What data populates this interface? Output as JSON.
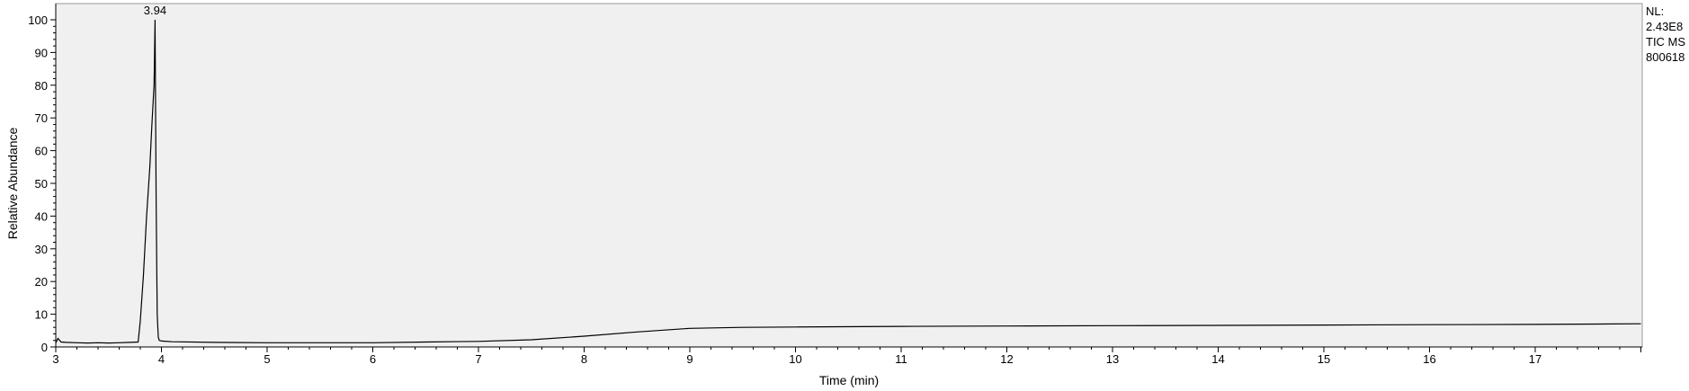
{
  "chart_data": {
    "type": "line",
    "title": "",
    "xlabel": "Time (min)",
    "ylabel": "Relative Abundance",
    "xlim": [
      3.0,
      18.0
    ],
    "ylim": [
      0,
      100
    ],
    "xticks": [
      3,
      4,
      5,
      6,
      7,
      8,
      9,
      10,
      11,
      12,
      13,
      14,
      15,
      16,
      17
    ],
    "yticks": [
      0,
      10,
      20,
      30,
      40,
      50,
      60,
      70,
      80,
      90,
      100
    ],
    "grid": false,
    "legend": "none",
    "series": [
      {
        "x": [
          3.0,
          3.02,
          3.05,
          3.1,
          3.2,
          3.3,
          3.4,
          3.5,
          3.6,
          3.7,
          3.78,
          3.8,
          3.83,
          3.86,
          3.89,
          3.91,
          3.93,
          3.94,
          3.95,
          3.96,
          3.97,
          3.98,
          4.0,
          4.1,
          4.5,
          5.0,
          6.0,
          6.5,
          7.0,
          7.5,
          8.0,
          8.5,
          9.0,
          9.5,
          10.0,
          11.0,
          12.0,
          13.0,
          14.0,
          15.0,
          16.0,
          17.0,
          18.0
        ],
        "y": [
          1.2,
          2.6,
          1.5,
          1.4,
          1.3,
          1.2,
          1.3,
          1.2,
          1.3,
          1.4,
          1.5,
          8.0,
          22.0,
          40.0,
          55.0,
          68.0,
          80.0,
          100.0,
          45.0,
          10.0,
          3.0,
          2.0,
          1.8,
          1.6,
          1.4,
          1.3,
          1.3,
          1.5,
          1.7,
          2.2,
          3.3,
          4.6,
          5.7,
          6.0,
          6.1,
          6.3,
          6.4,
          6.5,
          6.6,
          6.7,
          6.8,
          6.9,
          7.1
        ]
      }
    ],
    "annotations": [
      {
        "x": 3.94,
        "y": 100.0,
        "text": "3.94"
      }
    ]
  },
  "side_info": {
    "line1": "NL:",
    "line2": "2.43E8",
    "line3": "TIC  MS",
    "line4": "800618"
  },
  "colors": {
    "plot_background": "#f0f0f0",
    "trace": "#000000"
  }
}
